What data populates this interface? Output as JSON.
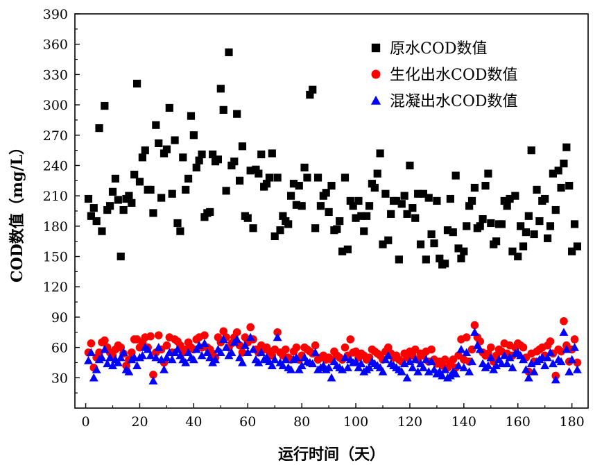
{
  "chart_data": {
    "type": "scatter",
    "title": "",
    "xlabel": "运行时间（天）",
    "ylabel": "COD数值（mg/L）",
    "xlim": [
      -4,
      186
    ],
    "ylim": [
      0,
      390
    ],
    "xticks": [
      0,
      20,
      40,
      60,
      80,
      100,
      120,
      140,
      160,
      180
    ],
    "yticks": [
      30,
      60,
      90,
      120,
      150,
      180,
      210,
      240,
      270,
      300,
      330,
      360,
      390
    ],
    "xtick_labels": [
      "0",
      "20",
      "40",
      "60",
      "80",
      "100",
      "120",
      "140",
      "160",
      "180"
    ],
    "ytick_labels": [
      "30",
      "60",
      "90",
      "120",
      "150",
      "180",
      "210",
      "240",
      "270",
      "300",
      "330",
      "360",
      "390"
    ],
    "legend_position": "top-right",
    "series": [
      {
        "name": "原水COD数值",
        "marker": "square",
        "color": "#000000",
        "x": [
          1,
          2,
          3,
          4,
          5,
          6,
          7,
          8,
          9,
          10,
          11,
          12,
          13,
          14,
          15,
          16,
          17,
          18,
          19,
          20,
          21,
          22,
          23,
          24,
          25,
          26,
          27,
          28,
          29,
          30,
          31,
          32,
          33,
          34,
          35,
          36,
          37,
          38,
          39,
          40,
          41,
          42,
          43,
          44,
          45,
          46,
          47,
          48,
          49,
          50,
          51,
          52,
          53,
          54,
          55,
          56,
          57,
          58,
          59,
          60,
          61,
          62,
          63,
          64,
          65,
          66,
          67,
          68,
          69,
          70,
          71,
          72,
          73,
          74,
          75,
          76,
          77,
          78,
          79,
          80,
          81,
          82,
          83,
          84,
          85,
          86,
          87,
          88,
          89,
          90,
          91,
          92,
          93,
          94,
          95,
          96,
          97,
          98,
          99,
          100,
          101,
          102,
          103,
          104,
          105,
          106,
          107,
          108,
          109,
          110,
          111,
          112,
          113,
          114,
          115,
          116,
          117,
          118,
          119,
          120,
          121,
          122,
          123,
          124,
          125,
          126,
          127,
          128,
          129,
          130,
          131,
          132,
          133,
          134,
          135,
          136,
          137,
          138,
          139,
          140,
          141,
          142,
          143,
          144,
          145,
          146,
          147,
          148,
          149,
          150,
          151,
          152,
          153,
          154,
          155,
          156,
          157,
          158,
          159,
          160,
          161,
          162,
          163,
          164,
          165,
          166,
          167,
          168,
          169,
          170,
          171,
          172,
          173,
          174,
          175,
          176,
          177,
          178,
          179,
          180,
          181,
          182
        ],
        "y": [
          207,
          190,
          198,
          185,
          277,
          175,
          299,
          196,
          200,
          214,
          227,
          206,
          150,
          196,
          207,
          210,
          203,
          231,
          321,
          224,
          248,
          255,
          216,
          216,
          193,
          280,
          262,
          208,
          252,
          256,
          297,
          212,
          265,
          183,
          175,
          248,
          216,
          227,
          289,
          270,
          238,
          245,
          251,
          189,
          193,
          194,
          251,
          244,
          246,
          316,
          295,
          215,
          352,
          240,
          244,
          291,
          225,
          259,
          190,
          188,
          235,
          178,
          236,
          232,
          251,
          219,
          222,
          228,
          252,
          170,
          228,
          176,
          190,
          185,
          182,
          210,
          222,
          201,
          220,
          200,
          238,
          228,
          310,
          315,
          178,
          228,
          200,
          210,
          213,
          194,
          220,
          176,
          177,
          185,
          155,
          228,
          157,
          205,
          200,
          188,
          205,
          190,
          175,
          190,
          200,
          222,
          218,
          232,
          252,
          162,
          212,
          166,
          192,
          205,
          205,
          147,
          202,
          210,
          192,
          240,
          198,
          188,
          212,
          162,
          212,
          147,
          208,
          172,
          163,
          205,
          148,
          142,
          143,
          176,
          207,
          174,
          230,
          158,
          148,
          155,
          180,
          200,
          205,
          218,
          178,
          180,
          187,
          220,
          232,
          183,
          162,
          165,
          182,
          182,
          205,
          200,
          207,
          155,
          210,
          150,
          180,
          160,
          174,
          190,
          255,
          172,
          216,
          185,
          205,
          207,
          168,
          180,
          232,
          196,
          235,
          218,
          242,
          258,
          220,
          155,
          182,
          160
        ]
      },
      {
        "name": "生化出水COD数值",
        "marker": "circle",
        "color": "#ff0000",
        "x": [
          1,
          2,
          3,
          4,
          5,
          6,
          7,
          8,
          9,
          10,
          11,
          12,
          13,
          14,
          15,
          16,
          17,
          18,
          19,
          20,
          21,
          22,
          23,
          24,
          25,
          26,
          27,
          28,
          29,
          30,
          31,
          32,
          33,
          34,
          35,
          36,
          37,
          38,
          39,
          40,
          41,
          42,
          43,
          44,
          45,
          46,
          47,
          48,
          49,
          50,
          51,
          52,
          53,
          54,
          55,
          56,
          57,
          58,
          59,
          60,
          61,
          62,
          63,
          64,
          65,
          66,
          67,
          68,
          69,
          70,
          71,
          72,
          73,
          74,
          75,
          76,
          77,
          78,
          79,
          80,
          81,
          82,
          83,
          84,
          85,
          86,
          87,
          88,
          89,
          90,
          91,
          92,
          93,
          94,
          95,
          96,
          97,
          98,
          99,
          100,
          101,
          102,
          103,
          104,
          105,
          106,
          107,
          108,
          109,
          110,
          111,
          112,
          113,
          114,
          115,
          116,
          117,
          118,
          119,
          120,
          121,
          122,
          123,
          124,
          125,
          126,
          127,
          128,
          129,
          130,
          131,
          132,
          133,
          134,
          135,
          136,
          137,
          138,
          139,
          140,
          141,
          142,
          143,
          144,
          145,
          146,
          147,
          148,
          149,
          150,
          151,
          152,
          153,
          154,
          155,
          156,
          157,
          158,
          159,
          160,
          161,
          162,
          163,
          164,
          165,
          166,
          167,
          168,
          169,
          170,
          171,
          172,
          173,
          174,
          175,
          176,
          177,
          178,
          179,
          180,
          181,
          182
        ],
        "y": [
          55,
          64,
          40,
          50,
          55,
          65,
          67,
          60,
          55,
          52,
          58,
          62,
          60,
          54,
          42,
          48,
          55,
          68,
          68,
          60,
          65,
          70,
          60,
          71,
          33,
          55,
          72,
          58,
          45,
          62,
          70,
          55,
          68,
          66,
          62,
          55,
          58,
          65,
          60,
          58,
          68,
          70,
          60,
          72,
          60,
          58,
          54,
          50,
          70,
          65,
          76,
          70,
          60,
          64,
          70,
          75,
          62,
          55,
          70,
          65,
          80,
          68,
          58,
          55,
          62,
          58,
          60,
          56,
          52,
          58,
          75,
          55,
          52,
          58,
          50,
          48,
          56,
          60,
          48,
          52,
          60,
          58,
          56,
          54,
          62,
          48,
          50,
          52,
          48,
          50,
          48,
          56,
          52,
          50,
          48,
          60,
          52,
          68,
          55,
          56,
          50,
          54,
          52,
          48,
          50,
          58,
          56,
          54,
          52,
          48,
          56,
          60,
          54,
          50,
          52,
          48,
          46,
          54,
          50,
          56,
          52,
          58,
          48,
          54,
          52,
          56,
          46,
          58,
          48,
          44,
          46,
          42,
          48,
          40,
          44,
          48,
          40,
          52,
          68,
          48,
          70,
          46,
          58,
          82,
          70,
          66,
          55,
          52,
          54,
          60,
          46,
          52,
          58,
          56,
          64,
          54,
          62,
          52,
          60,
          64,
          62,
          60,
          50,
          36,
          54,
          46,
          56,
          58,
          60,
          52,
          62,
          66,
          54,
          32,
          58,
          56,
          86,
          62,
          46,
          58,
          68,
          45
        ]
      },
      {
        "name": "混凝出水COD数值",
        "marker": "triangle",
        "color": "#0000ff",
        "x": [
          1,
          2,
          3,
          4,
          5,
          6,
          7,
          8,
          9,
          10,
          11,
          12,
          13,
          14,
          15,
          16,
          17,
          18,
          19,
          20,
          21,
          22,
          23,
          24,
          25,
          26,
          27,
          28,
          29,
          30,
          31,
          32,
          33,
          34,
          35,
          36,
          37,
          38,
          39,
          40,
          41,
          42,
          43,
          44,
          45,
          46,
          47,
          48,
          49,
          50,
          51,
          52,
          53,
          54,
          55,
          56,
          57,
          58,
          59,
          60,
          61,
          62,
          63,
          64,
          65,
          66,
          67,
          68,
          69,
          70,
          71,
          72,
          73,
          74,
          75,
          76,
          77,
          78,
          79,
          80,
          81,
          82,
          83,
          84,
          85,
          86,
          87,
          88,
          89,
          90,
          91,
          92,
          93,
          94,
          95,
          96,
          97,
          98,
          99,
          100,
          101,
          102,
          103,
          104,
          105,
          106,
          107,
          108,
          109,
          110,
          111,
          112,
          113,
          114,
          115,
          116,
          117,
          118,
          119,
          120,
          121,
          122,
          123,
          124,
          125,
          126,
          127,
          128,
          129,
          130,
          131,
          132,
          133,
          134,
          135,
          136,
          137,
          138,
          139,
          140,
          141,
          142,
          143,
          144,
          145,
          146,
          147,
          148,
          149,
          150,
          151,
          152,
          153,
          154,
          155,
          156,
          157,
          158,
          159,
          160,
          161,
          162,
          163,
          164,
          165,
          166,
          167,
          168,
          169,
          170,
          171,
          172,
          173,
          174,
          175,
          176,
          177,
          178,
          179,
          180,
          181,
          182
        ],
        "y": [
          47,
          55,
          30,
          38,
          48,
          50,
          58,
          44,
          50,
          42,
          48,
          45,
          50,
          55,
          38,
          36,
          48,
          50,
          42,
          50,
          52,
          60,
          58,
          52,
          27,
          50,
          60,
          48,
          38,
          50,
          55,
          48,
          55,
          58,
          52,
          48,
          45,
          55,
          50,
          48,
          58,
          62,
          52,
          64,
          55,
          50,
          45,
          48,
          58,
          55,
          68,
          60,
          52,
          55,
          65,
          68,
          50,
          45,
          62,
          55,
          70,
          58,
          48,
          45,
          55,
          48,
          50,
          46,
          42,
          48,
          70,
          45,
          42,
          48,
          40,
          38,
          48,
          50,
          38,
          42,
          50,
          46,
          45,
          44,
          55,
          38,
          40,
          42,
          38,
          40,
          30,
          46,
          42,
          40,
          38,
          50,
          40,
          48,
          45,
          46,
          40,
          44,
          36,
          38,
          40,
          46,
          44,
          42,
          40,
          36,
          48,
          52,
          44,
          42,
          40,
          38,
          36,
          44,
          30,
          46,
          40,
          48,
          36,
          44,
          40,
          48,
          36,
          46,
          38,
          34,
          36,
          32,
          38,
          30,
          32,
          36,
          34,
          42,
          58,
          40,
          55,
          36,
          46,
          75,
          62,
          58,
          44,
          40,
          42,
          50,
          38,
          42,
          48,
          44,
          52,
          44,
          50,
          40,
          54,
          55,
          52,
          48,
          38,
          30,
          44,
          36,
          46,
          48,
          50,
          42,
          50,
          55,
          44,
          28,
          48,
          46,
          75,
          58,
          36,
          48,
          60,
          38
        ]
      }
    ]
  }
}
